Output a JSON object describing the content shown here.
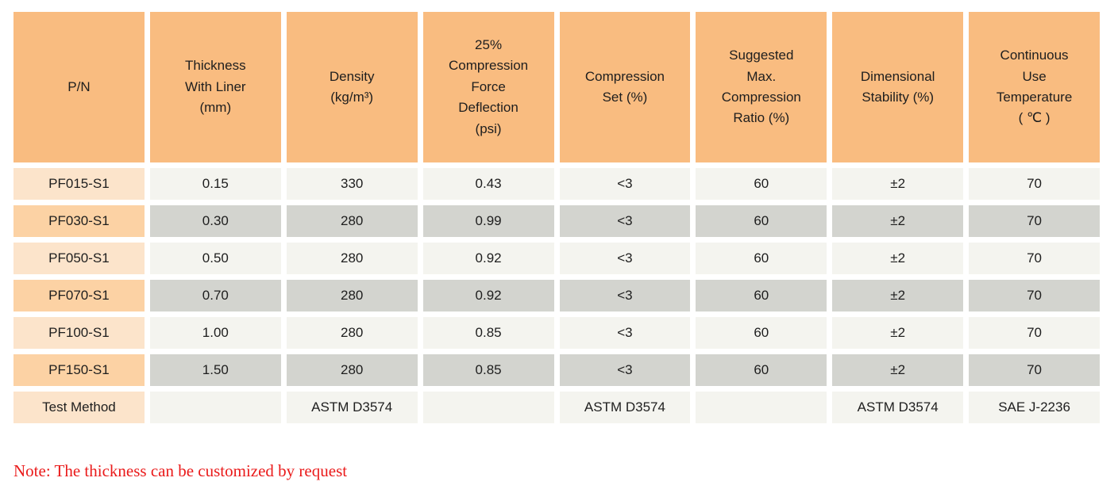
{
  "colors": {
    "header_bg": "#f9bc80",
    "pn_light": "#fce4cb",
    "pn_dark": "#fcd2a4",
    "row_light": "#f4f4ef",
    "row_dark": "#d3d4cf",
    "note_color": "#ea1a1a",
    "text": "#1e1e1e"
  },
  "table": {
    "columns": [
      {
        "label": "P/N"
      },
      {
        "label": "Thickness\nWith Liner\n(mm)"
      },
      {
        "label": "Density\n(kg/m³)"
      },
      {
        "label": "25%\nCompression\nForce\nDeflection\n(psi)"
      },
      {
        "label": "Compression\nSet (%)"
      },
      {
        "label": "Suggested\nMax.\nCompression\nRatio (%)"
      },
      {
        "label": "Dimensional\nStability (%)"
      },
      {
        "label": "Continuous\nUse\nTemperature\n( ℃ )"
      }
    ],
    "rows": [
      {
        "cells": [
          "PF015-S1",
          "0.15",
          "330",
          "0.43",
          "<3",
          "60",
          "±2",
          "70"
        ]
      },
      {
        "cells": [
          "PF030-S1",
          "0.30",
          "280",
          "0.99",
          "<3",
          "60",
          "±2",
          "70"
        ]
      },
      {
        "cells": [
          "PF050-S1",
          "0.50",
          "280",
          "0.92",
          "<3",
          "60",
          "±2",
          "70"
        ]
      },
      {
        "cells": [
          "PF070-S1",
          "0.70",
          "280",
          "0.92",
          "<3",
          "60",
          "±2",
          "70"
        ]
      },
      {
        "cells": [
          "PF100-S1",
          "1.00",
          "280",
          "0.85",
          "<3",
          "60",
          "±2",
          "70"
        ]
      },
      {
        "cells": [
          "PF150-S1",
          "1.50",
          "280",
          "0.85",
          "<3",
          "60",
          "±2",
          "70"
        ]
      },
      {
        "cells": [
          "Test Method",
          "",
          "ASTM D3574",
          "",
          "ASTM D3574",
          "",
          "ASTM D3574",
          "SAE J-2236"
        ]
      }
    ]
  },
  "note": {
    "text": "Note: The thickness can be customized by request"
  }
}
